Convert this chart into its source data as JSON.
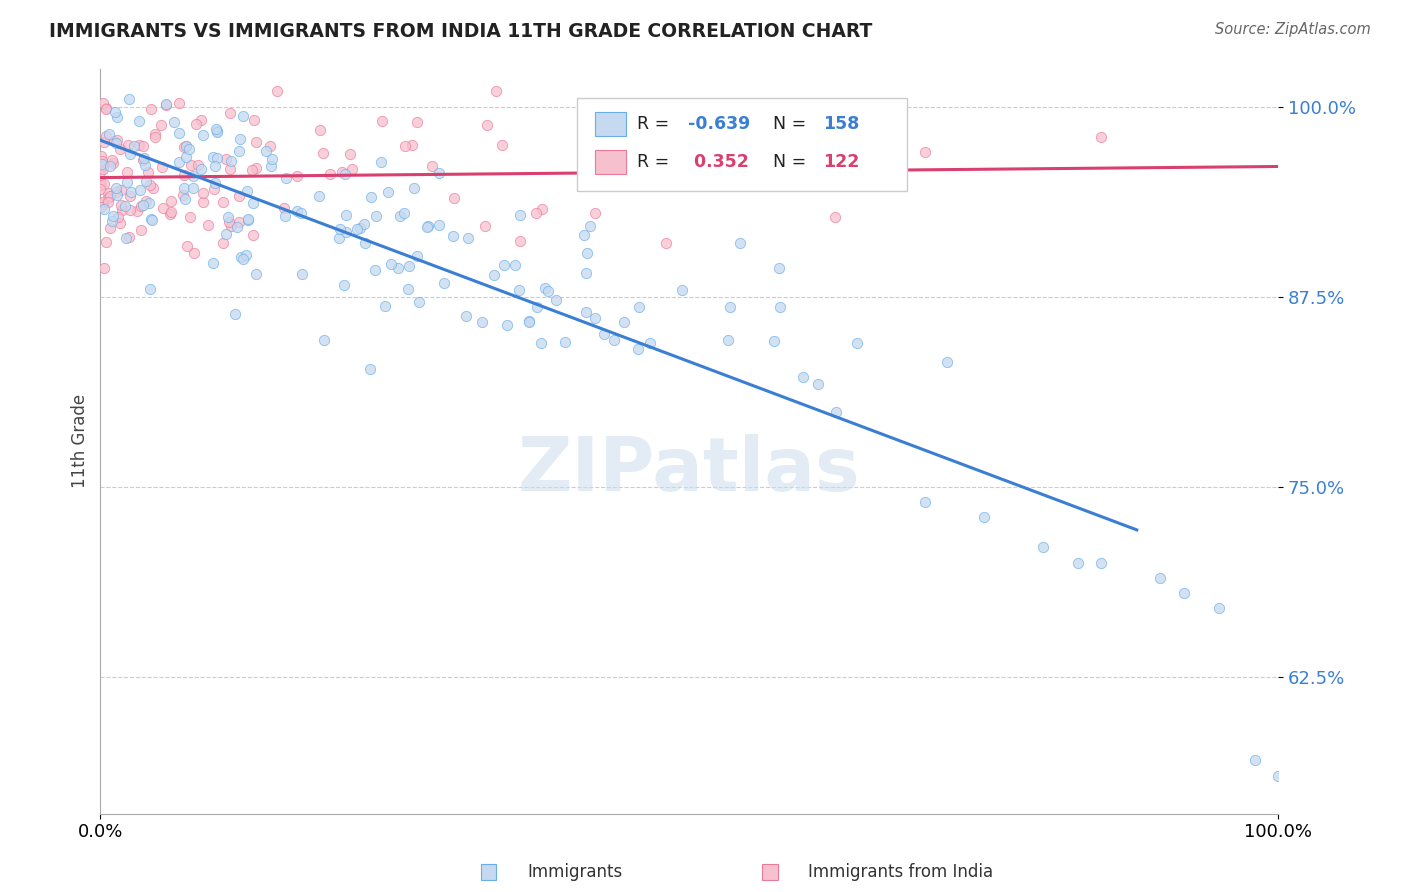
{
  "title": "IMMIGRANTS VS IMMIGRANTS FROM INDIA 11TH GRADE CORRELATION CHART",
  "source": "Source: ZipAtlas.com",
  "ylabel": "11th Grade",
  "watermark": "ZIPatlas",
  "blue_R": -0.639,
  "blue_N": 158,
  "pink_R": 0.352,
  "pink_N": 122,
  "blue_color": "#c5d9f0",
  "blue_edge_color": "#6aaee8",
  "blue_line_color": "#3a7fd4",
  "pink_color": "#f7c0ce",
  "pink_edge_color": "#e87a9a",
  "pink_line_color": "#d94070",
  "xmin": 0.0,
  "xmax": 1.0,
  "ymin": 0.535,
  "ymax": 1.025,
  "yticks": [
    1.0,
    0.875,
    0.75,
    0.625
  ],
  "ytick_labels": [
    "100.0%",
    "87.5%",
    "75.0%",
    "62.5%"
  ],
  "background": "#ffffff",
  "title_color": "#222222",
  "source_color": "#666666",
  "legend_text_color": "#222222",
  "r_value_color_blue": "#3a7fd4",
  "r_value_color_pink": "#d94070",
  "grid_color": "#cccccc",
  "scatter_size": 55,
  "scatter_alpha": 0.75,
  "line_width": 2.2
}
